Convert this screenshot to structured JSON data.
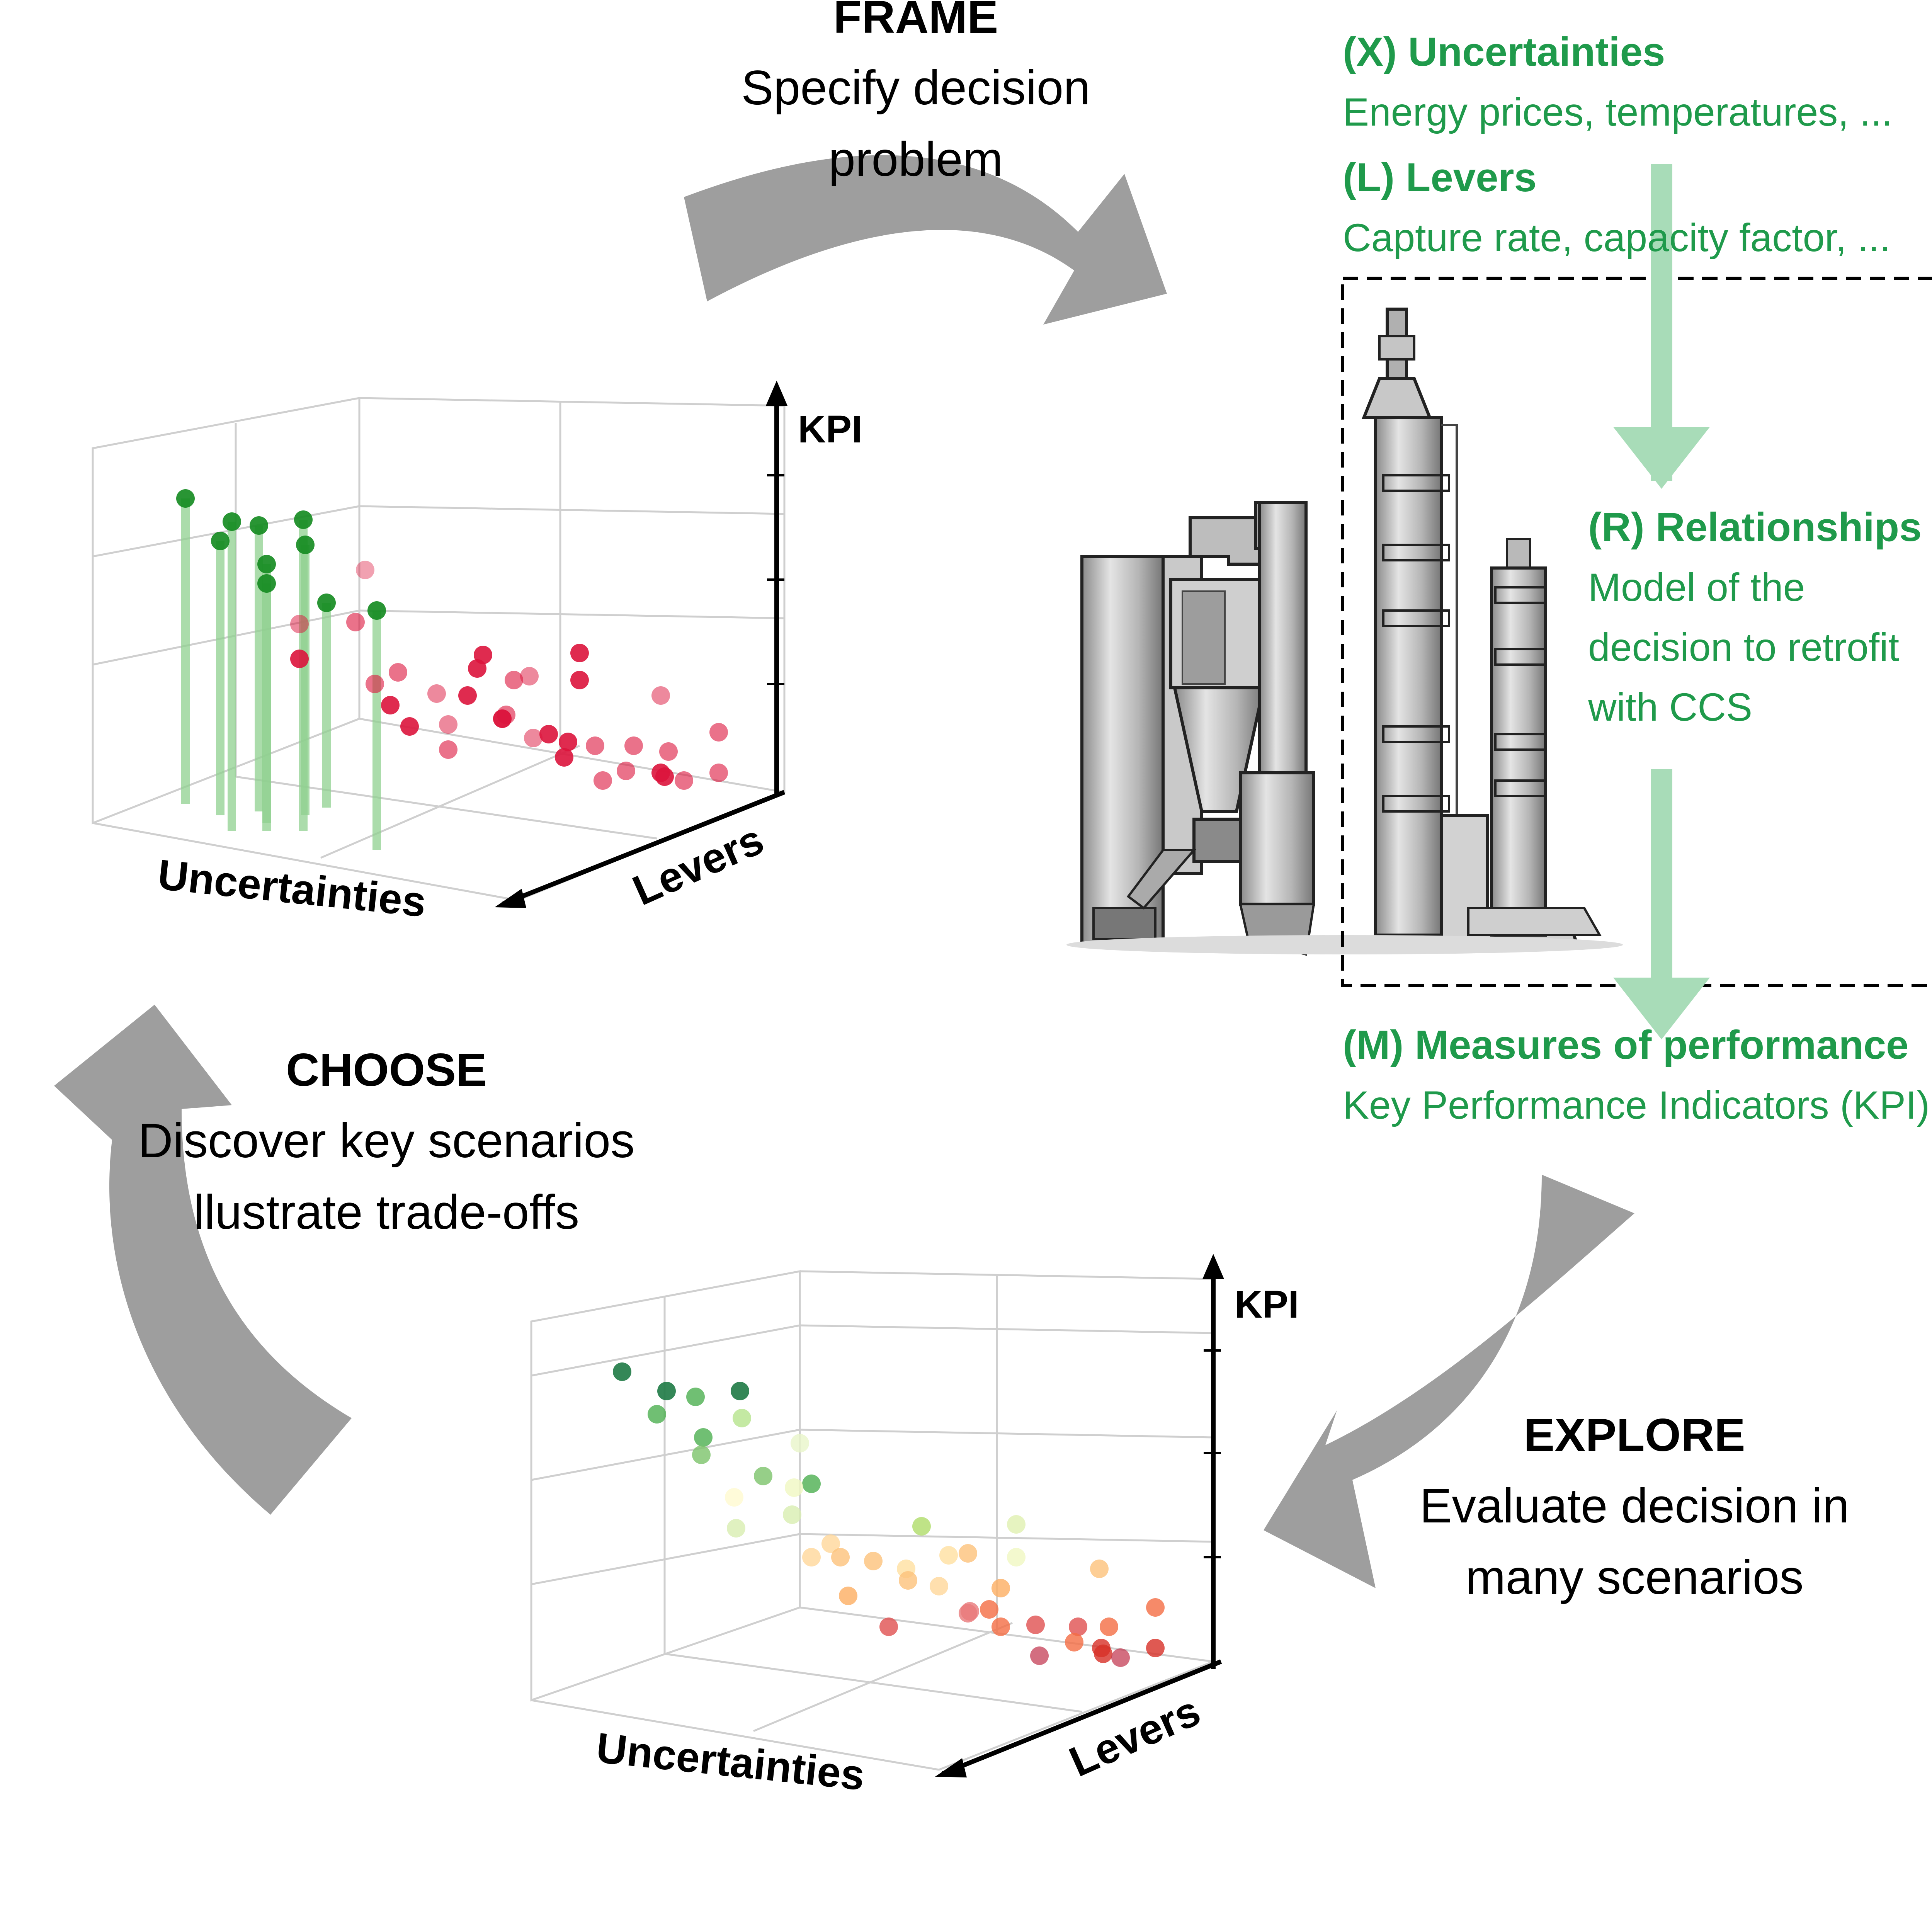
{
  "frame": {
    "title": "FRAME",
    "line1": "Specify decision",
    "line2": "problem"
  },
  "choose": {
    "title": "CHOOSE",
    "line1": "Discover key scenarios",
    "line2": "llustrate trade-offs"
  },
  "explore": {
    "title": "EXPLORE",
    "line1": "Evaluate decision in",
    "line2": "many scenarios"
  },
  "xlrm": {
    "x_title": "(X)  Uncertainties",
    "x_text": "Energy prices, temperatures, ...",
    "l_title": "(L)   Levers",
    "l_text": "Capture rate, capacity factor, ...",
    "r_title": "(R)  Relationships",
    "r_line1": "Model of the",
    "r_line2": "decision to retrofit",
    "r_line3": "with CCS",
    "m_title": "(M)  Measures of performance",
    "m_text": "Key Performance Indicators (KPI)"
  },
  "plot_top": {
    "kpi_label": "KPI",
    "x_axis": "Uncertainties",
    "y_axis": "Levers"
  },
  "plot_bottom": {
    "kpi_label": "KPI",
    "x_axis": "Uncertainties",
    "y_axis": "Levers"
  },
  "colors": {
    "xlrm_green": "#1f9a4b",
    "arrow_grey": "#9e9e9e",
    "light_green_arrow": "#a8dcb8",
    "point_red": "#dc143c",
    "point_green": "#128a1e",
    "stem_green": "#8fd08f"
  },
  "icons": {
    "plant": "power-plant-with-ccs-illustration"
  }
}
